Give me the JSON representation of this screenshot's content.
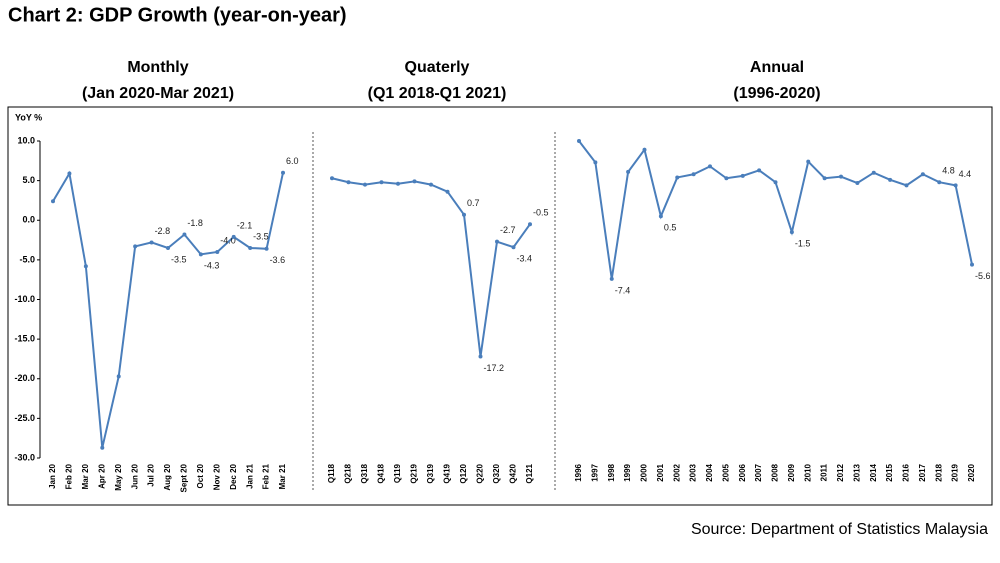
{
  "title": "Chart 2: GDP Growth (year-on-year)",
  "source": "Source: Department of Statistics Malaysia",
  "chart_data": [
    {
      "type": "line",
      "title": "Monthly",
      "subtitle": "(Jan 2020-Mar 2021)",
      "ylabel": "YoY %",
      "color": "#4a7ebb",
      "categories": [
        "Jan 20",
        "Feb 20",
        "Mar 20",
        "Apr 20",
        "May 20",
        "Jun 20",
        "Jul 20",
        "Aug 20",
        "Sept 20",
        "Oct 20",
        "Nov 20",
        "Dec 20",
        "Jan 21",
        "Feb 21",
        "Mar 21"
      ],
      "values": [
        2.4,
        5.9,
        -5.8,
        -28.7,
        -19.7,
        -3.3,
        -2.8,
        -3.5,
        -1.8,
        -4.3,
        -4.0,
        -2.1,
        -3.5,
        -3.6,
        6.0
      ],
      "value_labels": [
        null,
        null,
        null,
        null,
        null,
        null,
        "-2.8",
        "-3.5",
        "-1.8",
        "-4.3",
        "-4.0",
        "-2.1",
        "-3.5",
        "-3.6",
        "6.0"
      ],
      "ylim": [
        -30,
        10
      ],
      "yticks": [
        {
          "value": -30,
          "label": "-30.0"
        },
        {
          "value": -25,
          "label": "-25.0"
        },
        {
          "value": -20,
          "label": "-20.0"
        },
        {
          "value": -15,
          "label": "-15.0"
        },
        {
          "value": -10,
          "label": "-10.0"
        },
        {
          "value": -5,
          "label": "-5.0"
        },
        {
          "value": 0,
          "label": "0.0"
        },
        {
          "value": 5,
          "label": "5.0"
        },
        {
          "value": 10,
          "label": "10.0"
        }
      ]
    },
    {
      "type": "line",
      "title": "Quaterly",
      "subtitle": "(Q1 2018-Q1 2021)",
      "color": "#4a7ebb",
      "categories": [
        "Q118",
        "Q218",
        "Q318",
        "Q418",
        "Q119",
        "Q219",
        "Q319",
        "Q419",
        "Q120",
        "Q220",
        "Q320",
        "Q420",
        "Q121"
      ],
      "values": [
        5.3,
        4.8,
        4.5,
        4.8,
        4.6,
        4.9,
        4.5,
        3.6,
        0.7,
        -17.2,
        -2.7,
        -3.4,
        -0.5
      ],
      "value_labels": [
        null,
        null,
        null,
        null,
        null,
        null,
        null,
        null,
        "0.7",
        "-17.2",
        "-2.7",
        "-3.4",
        "-0.5"
      ],
      "ylim": [
        -30,
        10
      ]
    },
    {
      "type": "line",
      "title": "Annual",
      "subtitle": "(1996-2020)",
      "color": "#4a7ebb",
      "categories": [
        "1996",
        "1997",
        "1998",
        "1999",
        "2000",
        "2001",
        "2002",
        "2003",
        "2004",
        "2005",
        "2006",
        "2007",
        "2008",
        "2009",
        "2010",
        "2011",
        "2012",
        "2013",
        "2014",
        "2015",
        "2016",
        "2017",
        "2018",
        "2019",
        "2020"
      ],
      "values": [
        10.0,
        7.3,
        -7.4,
        6.1,
        8.9,
        0.5,
        5.4,
        5.8,
        6.8,
        5.3,
        5.6,
        6.3,
        4.8,
        -1.5,
        7.4,
        5.3,
        5.5,
        4.7,
        6.0,
        5.1,
        4.4,
        5.8,
        4.8,
        4.4,
        -5.6
      ],
      "value_labels": [
        null,
        null,
        "-7.4",
        null,
        null,
        "0.5",
        null,
        null,
        null,
        null,
        null,
        null,
        null,
        "-1.5",
        null,
        null,
        null,
        null,
        null,
        null,
        null,
        null,
        "4.8",
        "4.4",
        "-5.6"
      ],
      "ylim": [
        -30,
        10
      ]
    }
  ]
}
